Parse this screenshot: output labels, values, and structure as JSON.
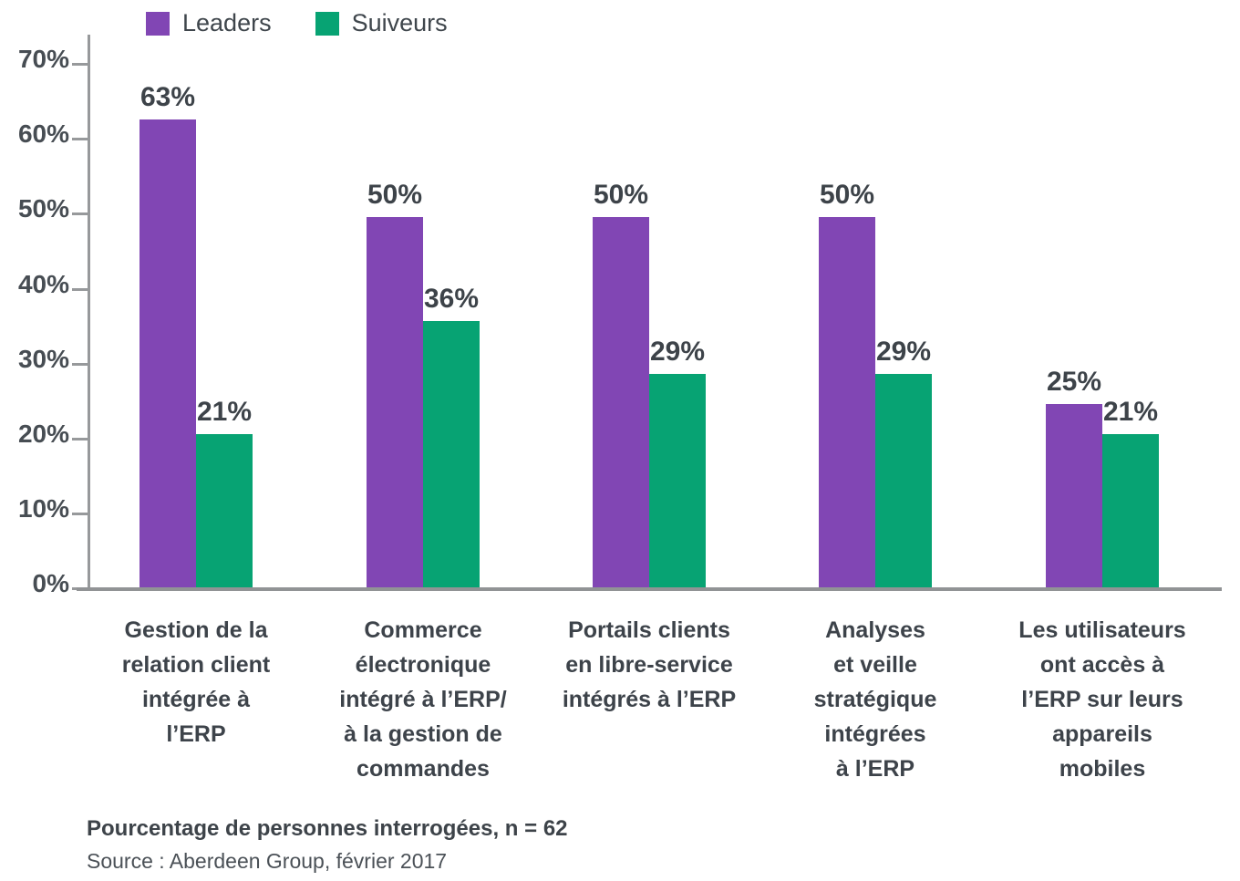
{
  "legend": {
    "items": [
      {
        "label": "Leaders",
        "color": "#8146b4"
      },
      {
        "label": "Suiveurs",
        "color": "#07a373"
      }
    ]
  },
  "chart_data": {
    "type": "bar",
    "categories": [
      "Gestion de la\nrelation client\nintégrée à\nl’ERP",
      "Commerce\nélectronique\nintégré à l’ERP/\nà la gestion de\ncommandes",
      "Portails clients\nen libre-service\nintégrés à l’ERP",
      "Analyses\net veille\nstratégique\nintégrées\nà l’ERP",
      "Les utilisateurs\nont accès à\nl’ERP sur leurs\nappareils\nmobiles"
    ],
    "series": [
      {
        "name": "Leaders",
        "color": "#8146b4",
        "values": [
          63,
          50,
          50,
          50,
          25
        ]
      },
      {
        "name": "Suiveurs",
        "color": "#07a373",
        "values": [
          21,
          36,
          29,
          29,
          21
        ]
      }
    ],
    "value_suffix": "%",
    "y_ticks": [
      "70%",
      "60%",
      "50%",
      "40%",
      "30%",
      "20%",
      "10%",
      "0%"
    ],
    "ylim": [
      0,
      70
    ],
    "grid": false,
    "legend_position": "top-left",
    "xlabel": "",
    "ylabel": ""
  },
  "footer": {
    "note": "Pourcentage de personnes interrogées, n = 62",
    "source": "Source : Aberdeen Group, février 2017"
  }
}
